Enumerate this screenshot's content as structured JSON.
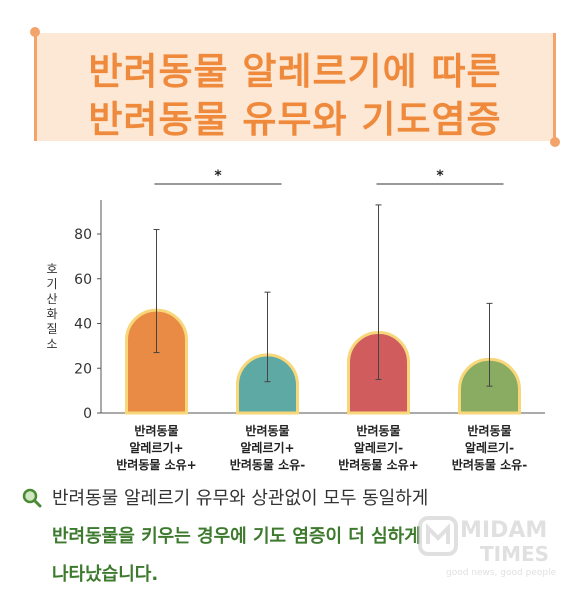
{
  "header": {
    "title_line1": "반려동물 알레르기에 따른",
    "title_line2": "반려동물 유무와 기도염증"
  },
  "chart_data": {
    "type": "bar",
    "ylabel": "호기산화질소",
    "ylim": [
      0,
      80
    ],
    "yticks": [
      "0",
      "20",
      "40",
      "60",
      "80"
    ],
    "categories": [
      [
        "반려동물",
        "알레르기+",
        "반려동물 소유+"
      ],
      [
        "반려동물",
        "알레르기+",
        "반려동물 소유-"
      ],
      [
        "반려동물",
        "알레르기-",
        "반려동물 소유+"
      ],
      [
        "반려동물",
        "알레르기-",
        "반려동물 소유-"
      ]
    ],
    "values": [
      46,
      26,
      36,
      24
    ],
    "error_low": [
      27,
      14,
      15,
      12
    ],
    "error_high": [
      82,
      54,
      93,
      49
    ],
    "colors": [
      "#ea8b45",
      "#5ea9a4",
      "#d05c5e",
      "#8aac62"
    ],
    "outline_color": "#f7d77a",
    "significance": [
      {
        "from": 0,
        "to": 1,
        "label": "*"
      },
      {
        "from": 2,
        "to": 3,
        "label": "*"
      }
    ]
  },
  "caption": {
    "icon": "magnifier-icon",
    "line1": "반려동물 알레르기 유무와 상관없이 모두 동일하게",
    "line2": "반려동물을 키우는 경우에 기도 염증이 더 심하게",
    "line3": "나타났습니다."
  },
  "watermark": {
    "name1": "MIDAM",
    "name2": "TIMES",
    "tagline": "good news, good people"
  }
}
